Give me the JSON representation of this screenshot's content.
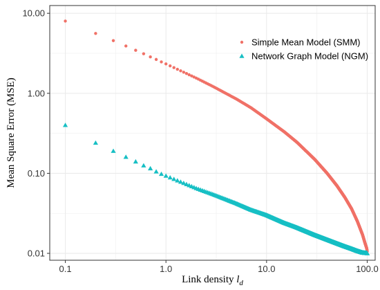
{
  "chart_data": {
    "type": "scatter",
    "xlabel": "Link density",
    "xlabel_var": "l",
    "xlabel_sub": "d",
    "ylabel": "Mean Square Error (MSE)",
    "x_scale": "log",
    "y_scale": "log",
    "xlim": [
      0.07,
      120
    ],
    "ylim": [
      0.0082,
      12.5
    ],
    "x_ticks": [
      0.1,
      1,
      10,
      100
    ],
    "x_tick_labels": [
      "0.1",
      "1.0",
      "10.0",
      "100.0"
    ],
    "y_ticks": [
      0.01,
      0.1,
      1,
      10
    ],
    "y_tick_labels": [
      "0.01",
      "0.10",
      "1.00",
      "10.00"
    ],
    "grid": true,
    "legend_position": "top-right",
    "x": [
      0.1,
      0.2,
      0.3,
      0.4,
      0.5,
      0.6,
      0.7,
      0.8,
      0.9,
      1.0,
      2,
      3,
      5,
      7,
      10,
      15,
      20,
      30,
      40,
      50,
      60,
      70,
      80,
      90,
      95,
      99,
      100
    ],
    "series": [
      {
        "name": "Simple Mean Model (SMM)",
        "marker": "circle",
        "color": "#f07167",
        "values": [
          8.0,
          5.6,
          4.55,
          3.9,
          3.45,
          3.12,
          2.85,
          2.65,
          2.47,
          2.33,
          1.55,
          1.2,
          0.85,
          0.66,
          0.48,
          0.33,
          0.245,
          0.15,
          0.1,
          0.07,
          0.05,
          0.036,
          0.025,
          0.017,
          0.0135,
          0.0115,
          0.0105
        ]
      },
      {
        "name": "Network Graph Model (NGM)",
        "marker": "triangle",
        "color": "#17bfc4",
        "values": [
          0.4,
          0.24,
          0.19,
          0.16,
          0.14,
          0.125,
          0.115,
          0.105,
          0.098,
          0.093,
          0.065,
          0.054,
          0.042,
          0.035,
          0.03,
          0.024,
          0.021,
          0.017,
          0.0148,
          0.0133,
          0.0122,
          0.0114,
          0.0107,
          0.0102,
          0.0101,
          0.0101,
          0.01
        ]
      }
    ]
  }
}
